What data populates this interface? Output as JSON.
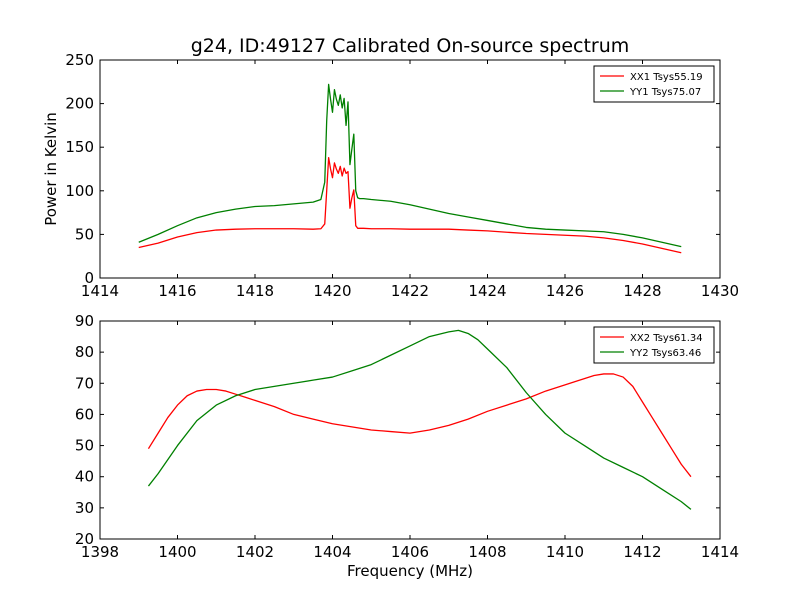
{
  "figure": {
    "title": "g24, ID:49127 Calibrated On-source spectrum"
  },
  "chart_data": [
    {
      "type": "line",
      "title": "g24, ID:49127 Calibrated On-source spectrum",
      "xlabel": "",
      "ylabel": "Power in Kelvin",
      "xlim": [
        1414,
        1430
      ],
      "ylim": [
        0,
        250
      ],
      "xticks": [
        1414,
        1416,
        1418,
        1420,
        1422,
        1424,
        1426,
        1428,
        1430
      ],
      "yticks": [
        0,
        50,
        100,
        150,
        200,
        250
      ],
      "grid": false,
      "legend_position": "top-right",
      "series": [
        {
          "name": "XX1 Tsys55.19",
          "color": "#ff0000",
          "x": [
            1415.0,
            1415.5,
            1416.0,
            1416.5,
            1417.0,
            1417.5,
            1418.0,
            1418.5,
            1419.0,
            1419.5,
            1419.7,
            1419.8,
            1419.85,
            1419.9,
            1419.95,
            1420.0,
            1420.05,
            1420.1,
            1420.15,
            1420.2,
            1420.25,
            1420.3,
            1420.35,
            1420.4,
            1420.45,
            1420.5,
            1420.55,
            1420.6,
            1420.65,
            1420.7,
            1420.8,
            1421.0,
            1421.5,
            1422.0,
            1422.5,
            1423.0,
            1423.5,
            1424.0,
            1424.5,
            1425.0,
            1425.5,
            1426.0,
            1426.5,
            1427.0,
            1427.5,
            1428.0,
            1428.5,
            1429.0
          ],
          "y": [
            35,
            40,
            47,
            52,
            55,
            56,
            56.5,
            56.5,
            56.5,
            56,
            56.5,
            62,
            100,
            138,
            125,
            115,
            132,
            125,
            120,
            128,
            117,
            126,
            120,
            122,
            80,
            92,
            101,
            60,
            57,
            57,
            57,
            56.5,
            56.5,
            56,
            56,
            56,
            55,
            54,
            52.5,
            51,
            50,
            49,
            48,
            46,
            43,
            39,
            34,
            29
          ]
        },
        {
          "name": "YY1 Tsys75.07",
          "color": "#008000",
          "x": [
            1415.0,
            1415.5,
            1416.0,
            1416.5,
            1417.0,
            1417.5,
            1418.0,
            1418.5,
            1419.0,
            1419.5,
            1419.7,
            1419.8,
            1419.85,
            1419.9,
            1419.95,
            1420.0,
            1420.05,
            1420.1,
            1420.15,
            1420.2,
            1420.25,
            1420.3,
            1420.35,
            1420.4,
            1420.45,
            1420.5,
            1420.55,
            1420.6,
            1420.65,
            1420.7,
            1420.8,
            1421.0,
            1421.5,
            1422.0,
            1422.5,
            1423.0,
            1423.5,
            1424.0,
            1424.5,
            1425.0,
            1425.5,
            1426.0,
            1426.5,
            1427.0,
            1427.5,
            1428.0,
            1428.5,
            1429.0
          ],
          "y": [
            41,
            50,
            60,
            69,
            75,
            79,
            82,
            83,
            85,
            87,
            90,
            110,
            180,
            222,
            205,
            190,
            216,
            205,
            198,
            210,
            195,
            206,
            175,
            202,
            130,
            148,
            165,
            100,
            92,
            91,
            91,
            90,
            88,
            84,
            79,
            74,
            70,
            66,
            62,
            58,
            56,
            55,
            54,
            53,
            50,
            46,
            41,
            36
          ]
        }
      ]
    },
    {
      "type": "line",
      "title": "",
      "xlabel": "Frequency (MHz)",
      "ylabel": "",
      "xlim": [
        1398,
        1414
      ],
      "ylim": [
        20,
        90
      ],
      "xticks": [
        1398,
        1400,
        1402,
        1404,
        1406,
        1408,
        1410,
        1412,
        1414
      ],
      "yticks": [
        20,
        30,
        40,
        50,
        60,
        70,
        80,
        90
      ],
      "grid": false,
      "legend_position": "top-right",
      "series": [
        {
          "name": "XX2 Tsys61.34",
          "color": "#ff0000",
          "x": [
            1399.25,
            1399.5,
            1399.75,
            1400.0,
            1400.25,
            1400.5,
            1400.75,
            1401.0,
            1401.25,
            1401.5,
            1401.75,
            1402.0,
            1402.5,
            1403.0,
            1403.5,
            1404.0,
            1404.5,
            1405.0,
            1405.5,
            1406.0,
            1406.5,
            1407.0,
            1407.5,
            1408.0,
            1408.5,
            1409.0,
            1409.5,
            1410.0,
            1410.5,
            1410.75,
            1411.0,
            1411.25,
            1411.5,
            1411.75,
            1412.0,
            1412.25,
            1412.5,
            1412.75,
            1413.0,
            1413.25
          ],
          "y": [
            49,
            54,
            59,
            63,
            66,
            67.5,
            68,
            68,
            67.5,
            66.5,
            65.5,
            64.5,
            62.5,
            60,
            58.5,
            57,
            56,
            55,
            54.5,
            54,
            55,
            56.5,
            58.5,
            61,
            63,
            65,
            67.5,
            69.5,
            71.5,
            72.5,
            73,
            73,
            72,
            69,
            64,
            59,
            54,
            49,
            44,
            40
          ]
        },
        {
          "name": "YY2 Tsys63.46",
          "color": "#008000",
          "x": [
            1399.25,
            1399.5,
            1400.0,
            1400.5,
            1401.0,
            1401.5,
            1402.0,
            1402.5,
            1403.0,
            1403.5,
            1404.0,
            1404.5,
            1405.0,
            1405.5,
            1406.0,
            1406.5,
            1407.0,
            1407.25,
            1407.5,
            1407.75,
            1408.0,
            1408.5,
            1409.0,
            1409.5,
            1410.0,
            1410.5,
            1411.0,
            1411.5,
            1412.0,
            1412.5,
            1413.0,
            1413.25
          ],
          "y": [
            37,
            41,
            50,
            58,
            63,
            66,
            68,
            69,
            70,
            71,
            72,
            74,
            76,
            79,
            82,
            85,
            86.5,
            87,
            86,
            84,
            81,
            75,
            67,
            60,
            54,
            50,
            46,
            43,
            40,
            36,
            32,
            29.5
          ]
        }
      ]
    }
  ]
}
